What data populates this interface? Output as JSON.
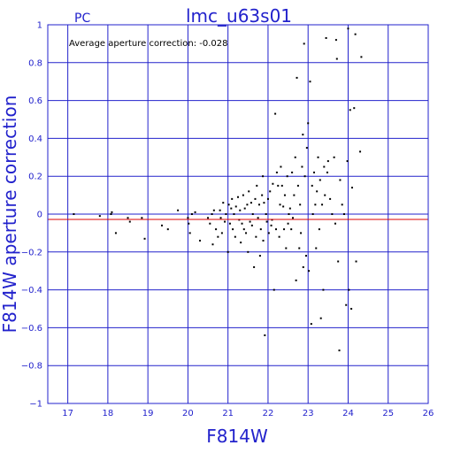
{
  "header": {
    "detector_label": "PC",
    "title": "lmc_u63s01"
  },
  "annotation": "Average aperture correction: -0.028",
  "colors": {
    "frame": "#2222cc",
    "grid": "#2222cc",
    "text": "#2222cc",
    "points": "#000000",
    "mean_line": "#dd0000"
  },
  "chart_data": {
    "type": "scatter",
    "title": "lmc_u63s01",
    "xlabel": "F814W",
    "ylabel": "F814W aperture correction",
    "xlim": [
      16.5,
      26
    ],
    "ylim": [
      -1,
      1
    ],
    "xticks": [
      17,
      18,
      19,
      20,
      21,
      22,
      23,
      24,
      25,
      26
    ],
    "yticks": [
      -1,
      -0.8,
      -0.6,
      -0.4,
      -0.2,
      0,
      0.2,
      0.4,
      0.6,
      0.8,
      1
    ],
    "xtick_labels": [
      "17",
      "18",
      "19",
      "20",
      "21",
      "22",
      "23",
      "24",
      "25",
      "26"
    ],
    "ytick_labels": [
      "−1",
      "−0.8",
      "−0.6",
      "−0.4",
      "−0.2",
      "0",
      "0.2",
      "0.4",
      "0.6",
      "0.8",
      "1"
    ],
    "grid": true,
    "mean_correction": -0.028,
    "points": [
      [
        17.15,
        0.0
      ],
      [
        17.8,
        -0.01
      ],
      [
        18.08,
        0.0
      ],
      [
        18.1,
        0.01
      ],
      [
        18.2,
        -0.1
      ],
      [
        18.5,
        -0.02
      ],
      [
        18.55,
        -0.04
      ],
      [
        18.85,
        -0.02
      ],
      [
        18.92,
        -0.13
      ],
      [
        19.35,
        -0.06
      ],
      [
        19.5,
        -0.08
      ],
      [
        19.75,
        0.02
      ],
      [
        20.0,
        -0.02
      ],
      [
        20.02,
        -0.05
      ],
      [
        20.05,
        -0.1
      ],
      [
        20.1,
        0.0
      ],
      [
        20.18,
        0.01
      ],
      [
        20.3,
        -0.14
      ],
      [
        20.5,
        -0.02
      ],
      [
        20.55,
        -0.05
      ],
      [
        20.6,
        0.0
      ],
      [
        20.62,
        -0.16
      ],
      [
        20.65,
        0.02
      ],
      [
        20.7,
        -0.08
      ],
      [
        20.75,
        -0.12
      ],
      [
        20.8,
        0.02
      ],
      [
        20.82,
        -0.02
      ],
      [
        20.85,
        -0.1
      ],
      [
        20.88,
        0.06
      ],
      [
        20.92,
        -0.04
      ],
      [
        20.95,
        0.0
      ],
      [
        21.0,
        -0.2
      ],
      [
        21.02,
        0.05
      ],
      [
        21.05,
        -0.05
      ],
      [
        21.08,
        0.03
      ],
      [
        21.1,
        0.08
      ],
      [
        21.12,
        -0.08
      ],
      [
        21.15,
        0.0
      ],
      [
        21.18,
        -0.12
      ],
      [
        21.2,
        0.04
      ],
      [
        21.25,
        0.09
      ],
      [
        21.28,
        -0.03
      ],
      [
        21.3,
        0.02
      ],
      [
        21.32,
        -0.15
      ],
      [
        21.35,
        -0.05
      ],
      [
        21.38,
        0.1
      ],
      [
        21.4,
        -0.08
      ],
      [
        21.42,
        0.03
      ],
      [
        21.45,
        -0.1
      ],
      [
        21.48,
        0.05
      ],
      [
        21.5,
        -0.2
      ],
      [
        21.52,
        0.12
      ],
      [
        21.55,
        -0.04
      ],
      [
        21.58,
        0.06
      ],
      [
        21.6,
        -0.06
      ],
      [
        21.62,
        0.0
      ],
      [
        21.65,
        -0.28
      ],
      [
        21.68,
        0.08
      ],
      [
        21.7,
        -0.12
      ],
      [
        21.72,
        0.15
      ],
      [
        21.75,
        -0.02
      ],
      [
        21.78,
        0.05
      ],
      [
        21.8,
        -0.22
      ],
      [
        21.82,
        -0.08
      ],
      [
        21.85,
        0.1
      ],
      [
        21.87,
        0.2
      ],
      [
        21.88,
        -0.14
      ],
      [
        21.9,
        0.06
      ],
      [
        21.92,
        -0.64
      ],
      [
        21.95,
        0.0
      ],
      [
        21.97,
        -0.04
      ],
      [
        22.0,
        0.08
      ],
      [
        22.02,
        -0.1
      ],
      [
        22.05,
        0.12
      ],
      [
        22.08,
        -0.06
      ],
      [
        22.1,
        -0.03
      ],
      [
        22.12,
        0.16
      ],
      [
        22.15,
        -0.4
      ],
      [
        22.18,
        0.53
      ],
      [
        22.2,
        -0.08
      ],
      [
        22.22,
        0.22
      ],
      [
        22.25,
        0.15
      ],
      [
        22.28,
        -0.12
      ],
      [
        22.3,
        0.05
      ],
      [
        22.32,
        0.25
      ],
      [
        22.35,
        0.15
      ],
      [
        22.38,
        0.04
      ],
      [
        22.4,
        -0.08
      ],
      [
        22.42,
        0.1
      ],
      [
        22.45,
        -0.18
      ],
      [
        22.48,
        0.2
      ],
      [
        22.5,
        -0.05
      ],
      [
        22.52,
        0.0
      ],
      [
        22.55,
        0.03
      ],
      [
        22.58,
        -0.08
      ],
      [
        22.6,
        0.22
      ],
      [
        22.62,
        -0.02
      ],
      [
        22.65,
        0.1
      ],
      [
        22.68,
        0.3
      ],
      [
        22.7,
        -0.35
      ],
      [
        22.72,
        0.72
      ],
      [
        22.75,
        0.15
      ],
      [
        22.78,
        -0.18
      ],
      [
        22.8,
        0.05
      ],
      [
        22.82,
        -0.1
      ],
      [
        22.85,
        0.25
      ],
      [
        22.87,
        0.42
      ],
      [
        22.88,
        -0.28
      ],
      [
        22.9,
        0.9
      ],
      [
        22.92,
        0.2
      ],
      [
        22.95,
        -0.22
      ],
      [
        22.97,
        0.35
      ],
      [
        23.0,
        0.48
      ],
      [
        23.02,
        -0.3
      ],
      [
        23.05,
        0.7
      ],
      [
        23.08,
        -0.58
      ],
      [
        23.1,
        0.15
      ],
      [
        23.12,
        0.0
      ],
      [
        23.15,
        0.22
      ],
      [
        23.18,
        0.05
      ],
      [
        23.2,
        -0.18
      ],
      [
        23.22,
        0.12
      ],
      [
        23.25,
        0.3
      ],
      [
        23.28,
        -0.08
      ],
      [
        23.3,
        0.18
      ],
      [
        23.32,
        -0.55
      ],
      [
        23.35,
        0.05
      ],
      [
        23.38,
        -0.4
      ],
      [
        23.4,
        0.25
      ],
      [
        23.42,
        0.1
      ],
      [
        23.45,
        0.93
      ],
      [
        23.48,
        0.22
      ],
      [
        23.5,
        0.28
      ],
      [
        23.55,
        0.08
      ],
      [
        23.6,
        0.0
      ],
      [
        23.65,
        0.3
      ],
      [
        23.68,
        -0.05
      ],
      [
        23.7,
        0.92
      ],
      [
        23.72,
        0.82
      ],
      [
        23.75,
        -0.25
      ],
      [
        23.78,
        -0.72
      ],
      [
        23.8,
        0.18
      ],
      [
        23.85,
        0.05
      ],
      [
        23.9,
        0.0
      ],
      [
        23.95,
        -0.48
      ],
      [
        23.98,
        0.28
      ],
      [
        24.0,
        0.98
      ],
      [
        24.02,
        -0.4
      ],
      [
        24.05,
        0.55
      ],
      [
        24.08,
        -0.5
      ],
      [
        24.1,
        0.14
      ],
      [
        24.15,
        0.56
      ],
      [
        24.18,
        0.95
      ],
      [
        24.2,
        -0.25
      ],
      [
        24.3,
        0.33
      ],
      [
        24.33,
        0.83
      ]
    ]
  }
}
